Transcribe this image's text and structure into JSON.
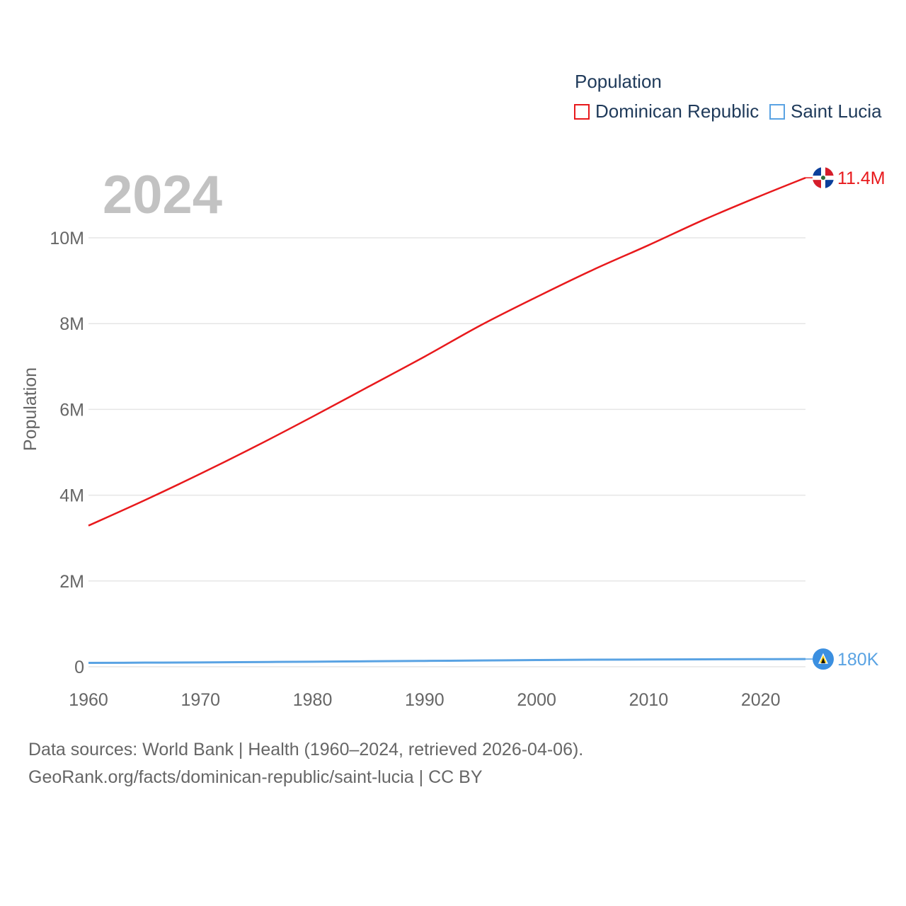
{
  "legend": {
    "title": "Population",
    "items": [
      {
        "label": "Dominican Republic",
        "color": "#e8191c"
      },
      {
        "label": "Saint Lucia",
        "color": "#5aa3e3"
      }
    ]
  },
  "year_label": "2024",
  "footer": {
    "line1": "Data sources: World Bank | Health (1960–2024, retrieved 2026-04-06).",
    "line2": "GeoRank.org/facts/dominican-republic/saint-lucia | CC BY"
  },
  "chart_data": {
    "type": "line",
    "title": "",
    "xlabel": "",
    "ylabel": "Population",
    "xlim": [
      1960,
      2024
    ],
    "ylim": [
      0,
      11000000
    ],
    "x_ticks": [
      1960,
      1970,
      1980,
      1990,
      2000,
      2010,
      2020
    ],
    "x_tick_labels": [
      "1960",
      "1970",
      "1980",
      "1990",
      "2000",
      "2010",
      "2020"
    ],
    "y_ticks": [
      0,
      2000000,
      4000000,
      6000000,
      8000000,
      10000000
    ],
    "y_tick_labels": [
      "0",
      "2M",
      "4M",
      "6M",
      "8M",
      "10M"
    ],
    "grid": true,
    "x": [
      1960,
      1965,
      1970,
      1975,
      1980,
      1985,
      1990,
      1995,
      2000,
      2005,
      2010,
      2015,
      2020,
      2024
    ],
    "series": [
      {
        "name": "Dominican Republic",
        "color": "#e8191c",
        "values": [
          3290000,
          3880000,
          4500000,
          5150000,
          5830000,
          6530000,
          7230000,
          7960000,
          8620000,
          9250000,
          9830000,
          10430000,
          10980000,
          11400000
        ],
        "end_label": "11.4M"
      },
      {
        "name": "Saint Lucia",
        "color": "#5aa3e3",
        "values": [
          90000,
          96000,
          102000,
          110000,
          118000,
          128000,
          137000,
          146000,
          156000,
          164000,
          170000,
          174000,
          177000,
          180000
        ],
        "end_label": "180K"
      }
    ]
  }
}
